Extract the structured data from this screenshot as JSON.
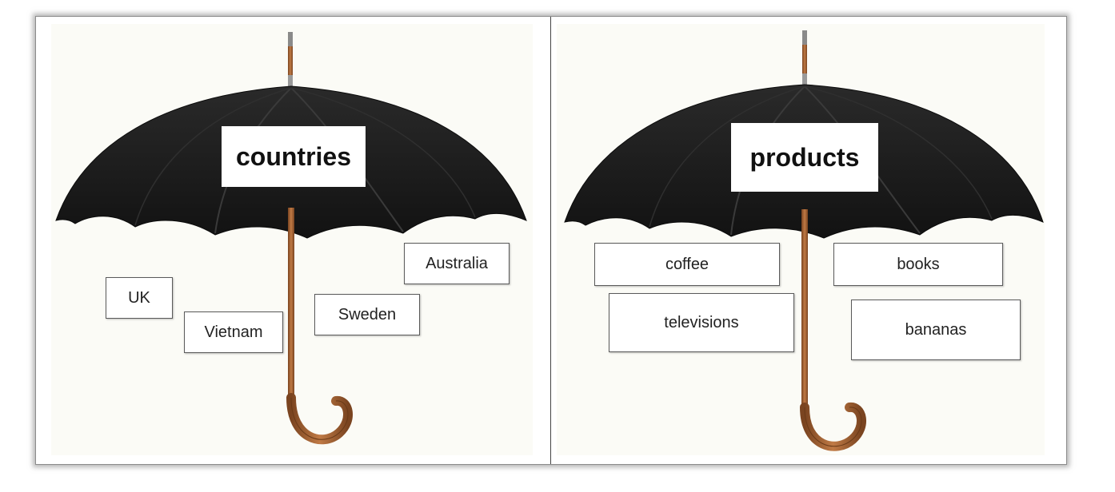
{
  "left_panel": {
    "title": "countries",
    "items": [
      "UK",
      "Vietnam",
      "Sweden",
      "Australia"
    ]
  },
  "right_panel": {
    "title": "products",
    "items": [
      "coffee",
      "books",
      "televisions",
      "bananas"
    ]
  },
  "colors": {
    "canopy": "#1c1c1c",
    "handle": "#a0643a",
    "background": "#fbfbf6"
  }
}
